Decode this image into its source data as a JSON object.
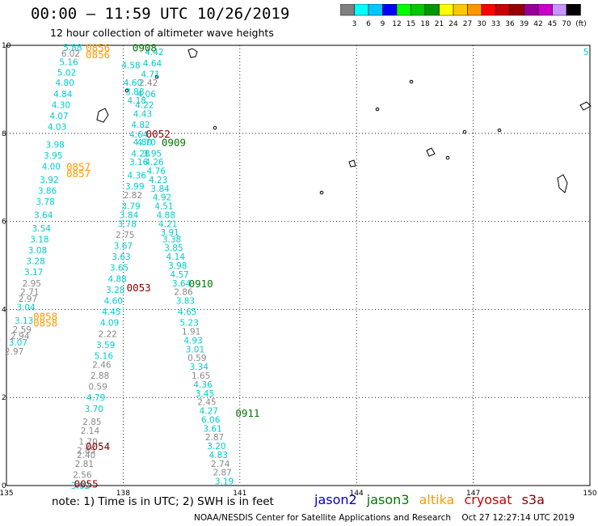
{
  "title": "00:00 – 11:59 UTC 10/26/2019",
  "subtitle": "12 hour collection of altimeter wave heights",
  "colorbar": {
    "colors": [
      "#7f7f7f",
      "#00ffff",
      "#00c8ff",
      "#0000ff",
      "#00ff00",
      "#00c800",
      "#009600",
      "#ffff00",
      "#ffc800",
      "#ff9600",
      "#ff0000",
      "#c80000",
      "#960000",
      "#960096",
      "#c800c8",
      "#c896ff",
      "#000000"
    ],
    "labels": [
      "3",
      "6",
      "9",
      "12",
      "15",
      "18",
      "21",
      "24",
      "27",
      "30",
      "33",
      "36",
      "39",
      "42",
      "45",
      "70"
    ],
    "unit": "(ft)"
  },
  "axes": {
    "x_ticks": [
      "135",
      "138",
      "141",
      "144",
      "147",
      "150"
    ],
    "y_ticks": [
      "0",
      "2",
      "4",
      "6",
      "8",
      "10"
    ]
  },
  "note": "note:  1) Time is in UTC;  2) SWH is in feet",
  "legend": [
    {
      "name": "jason2",
      "color": "#0000cc"
    },
    {
      "name": "jason3",
      "color": "#007700"
    },
    {
      "name": "altika",
      "color": "#ff9900"
    },
    {
      "name": "cryosat",
      "color": "#cc0000"
    },
    {
      "name": "s3a",
      "color": "#880000"
    }
  ],
  "credit": "NOAA/NESDIS Center for Satellite Applications and Research    Oct 27 12:27:14 UTC 2019",
  "track_labels": [
    {
      "t": "0856",
      "lon": 137.35,
      "lat": 9.95,
      "c": "#ff9900"
    },
    {
      "t": "0856",
      "lon": 137.35,
      "lat": 9.8,
      "c": "#ff9900"
    },
    {
      "t": "0908",
      "lon": 138.55,
      "lat": 9.95,
      "c": "#007700"
    },
    {
      "t": "0052",
      "lon": 138.9,
      "lat": 8.0,
      "c": "#880000"
    },
    {
      "t": "0909",
      "lon": 139.3,
      "lat": 7.8,
      "c": "#007700"
    },
    {
      "t": "0857",
      "lon": 136.85,
      "lat": 7.25,
      "c": "#ff9900"
    },
    {
      "t": "0857",
      "lon": 136.85,
      "lat": 7.1,
      "c": "#ff9900"
    },
    {
      "t": "0910",
      "lon": 140.0,
      "lat": 4.6,
      "c": "#007700"
    },
    {
      "t": "0053",
      "lon": 138.4,
      "lat": 4.5,
      "c": "#880000"
    },
    {
      "t": "0858",
      "lon": 136.0,
      "lat": 3.85,
      "c": "#ff9900"
    },
    {
      "t": "0858",
      "lon": 136.0,
      "lat": 3.7,
      "c": "#ff9900"
    },
    {
      "t": "0911",
      "lon": 141.2,
      "lat": 1.65,
      "c": "#007700"
    },
    {
      "t": "0054",
      "lon": 137.35,
      "lat": 0.9,
      "c": "#880000"
    },
    {
      "t": "0055",
      "lon": 137.05,
      "lat": 0.05,
      "c": "#880000"
    }
  ],
  "swh": [
    {
      "v": "5.88",
      "lon": 136.7,
      "lat": 9.95,
      "c": "#00cccc"
    },
    {
      "v": "6.02",
      "lon": 136.65,
      "lat": 9.82,
      "c": "#888888"
    },
    {
      "v": "5.16",
      "lon": 136.6,
      "lat": 9.62,
      "c": "#00cccc"
    },
    {
      "v": "5.02",
      "lon": 136.55,
      "lat": 9.38,
      "c": "#00cccc"
    },
    {
      "v": "4.80",
      "lon": 136.5,
      "lat": 9.15,
      "c": "#00cccc"
    },
    {
      "v": "4.84",
      "lon": 136.45,
      "lat": 8.9,
      "c": "#00cccc"
    },
    {
      "v": "4.30",
      "lon": 136.4,
      "lat": 8.65,
      "c": "#00cccc"
    },
    {
      "v": "4.07",
      "lon": 136.35,
      "lat": 8.4,
      "c": "#00cccc"
    },
    {
      "v": "4.03",
      "lon": 136.3,
      "lat": 8.15,
      "c": "#00cccc"
    },
    {
      "v": "3.98",
      "lon": 136.25,
      "lat": 7.75,
      "c": "#00cccc"
    },
    {
      "v": "3.95",
      "lon": 136.2,
      "lat": 7.5,
      "c": "#00cccc"
    },
    {
      "v": "4.00",
      "lon": 136.15,
      "lat": 7.25,
      "c": "#00cccc"
    },
    {
      "v": "3.92",
      "lon": 136.1,
      "lat": 6.95,
      "c": "#00cccc"
    },
    {
      "v": "3.86",
      "lon": 136.05,
      "lat": 6.7,
      "c": "#00cccc"
    },
    {
      "v": "3.78",
      "lon": 136.0,
      "lat": 6.45,
      "c": "#00cccc"
    },
    {
      "v": "3.64",
      "lon": 135.95,
      "lat": 6.15,
      "c": "#00cccc"
    },
    {
      "v": "3.54",
      "lon": 135.9,
      "lat": 5.85,
      "c": "#00cccc"
    },
    {
      "v": "3.18",
      "lon": 135.85,
      "lat": 5.6,
      "c": "#00cccc"
    },
    {
      "v": "3.08",
      "lon": 135.8,
      "lat": 5.35,
      "c": "#00cccc"
    },
    {
      "v": "3.28",
      "lon": 135.75,
      "lat": 5.1,
      "c": "#00cccc"
    },
    {
      "v": "3.17",
      "lon": 135.7,
      "lat": 4.85,
      "c": "#00cccc"
    },
    {
      "v": "2.95",
      "lon": 135.65,
      "lat": 4.6,
      "c": "#888888"
    },
    {
      "v": "2.71",
      "lon": 135.6,
      "lat": 4.4,
      "c": "#888888"
    },
    {
      "v": "2.97",
      "lon": 135.55,
      "lat": 4.25,
      "c": "#888888"
    },
    {
      "v": "3.04",
      "lon": 135.5,
      "lat": 4.05,
      "c": "#00cccc"
    },
    {
      "v": "3.13",
      "lon": 135.45,
      "lat": 3.75,
      "c": "#00cccc"
    },
    {
      "v": "2.59",
      "lon": 135.4,
      "lat": 3.55,
      "c": "#888888"
    },
    {
      "v": "2.94",
      "lon": 135.35,
      "lat": 3.4,
      "c": "#888888"
    },
    {
      "v": "3.07",
      "lon": 135.3,
      "lat": 3.25,
      "c": "#00cccc"
    },
    {
      "v": "2.97",
      "lon": 135.2,
      "lat": 3.05,
      "c": "#888888"
    },
    {
      "v": "4.42",
      "lon": 138.8,
      "lat": 9.85,
      "c": "#00cccc"
    },
    {
      "v": "4.64",
      "lon": 138.75,
      "lat": 9.6,
      "c": "#00cccc"
    },
    {
      "v": "4.58",
      "lon": 138.2,
      "lat": 9.55,
      "c": "#00cccc"
    },
    {
      "v": "4.71",
      "lon": 138.7,
      "lat": 9.35,
      "c": "#00cccc"
    },
    {
      "v": "4.60",
      "lon": 138.25,
      "lat": 9.15,
      "c": "#00cccc"
    },
    {
      "v": "2.42",
      "lon": 138.65,
      "lat": 9.15,
      "c": "#888888"
    },
    {
      "v": "3.88",
      "lon": 138.3,
      "lat": 8.95,
      "c": "#00cccc"
    },
    {
      "v": "4.06",
      "lon": 138.6,
      "lat": 8.9,
      "c": "#00cccc"
    },
    {
      "v": "4.18",
      "lon": 138.35,
      "lat": 8.75,
      "c": "#00cccc"
    },
    {
      "v": "4.22",
      "lon": 138.55,
      "lat": 8.65,
      "c": "#00cccc"
    },
    {
      "v": "4.43",
      "lon": 138.5,
      "lat": 8.45,
      "c": "#00cccc"
    },
    {
      "v": "4.82",
      "lon": 138.45,
      "lat": 8.2,
      "c": "#00cccc"
    },
    {
      "v": "4.64",
      "lon": 138.4,
      "lat": 7.98,
      "c": "#00cccc"
    },
    {
      "v": "4.80",
      "lon": 138.5,
      "lat": 7.8,
      "c": "#00cccc"
    },
    {
      "v": "4.70",
      "lon": 138.6,
      "lat": 7.8,
      "c": "#00cccc"
    },
    {
      "v": "4.28",
      "lon": 138.45,
      "lat": 7.55,
      "c": "#00cccc"
    },
    {
      "v": "3.95",
      "lon": 138.75,
      "lat": 7.55,
      "c": "#00cccc"
    },
    {
      "v": "3.16",
      "lon": 138.4,
      "lat": 7.35,
      "c": "#00cccc"
    },
    {
      "v": "4.26",
      "lon": 138.8,
      "lat": 7.35,
      "c": "#00cccc"
    },
    {
      "v": "4.76",
      "lon": 138.85,
      "lat": 7.15,
      "c": "#00cccc"
    },
    {
      "v": "4.36",
      "lon": 138.35,
      "lat": 7.05,
      "c": "#00cccc"
    },
    {
      "v": "4.23",
      "lon": 138.9,
      "lat": 6.95,
      "c": "#00cccc"
    },
    {
      "v": "3.99",
      "lon": 138.3,
      "lat": 6.8,
      "c": "#00cccc"
    },
    {
      "v": "3.84",
      "lon": 138.95,
      "lat": 6.75,
      "c": "#00cccc"
    },
    {
      "v": "2.82",
      "lon": 138.25,
      "lat": 6.6,
      "c": "#888888"
    },
    {
      "v": "4.92",
      "lon": 139.0,
      "lat": 6.55,
      "c": "#00cccc"
    },
    {
      "v": "3.79",
      "lon": 138.2,
      "lat": 6.35,
      "c": "#00cccc"
    },
    {
      "v": "4.51",
      "lon": 139.05,
      "lat": 6.35,
      "c": "#00cccc"
    },
    {
      "v": "3.84",
      "lon": 138.15,
      "lat": 6.15,
      "c": "#00cccc"
    },
    {
      "v": "4.88",
      "lon": 139.1,
      "lat": 6.15,
      "c": "#00cccc"
    },
    {
      "v": "4.21",
      "lon": 139.15,
      "lat": 5.95,
      "c": "#00cccc"
    },
    {
      "v": "3.78",
      "lon": 138.1,
      "lat": 5.95,
      "c": "#00cccc"
    },
    {
      "v": "3.91",
      "lon": 139.2,
      "lat": 5.75,
      "c": "#00cccc"
    },
    {
      "v": "2.75",
      "lon": 138.05,
      "lat": 5.7,
      "c": "#888888"
    },
    {
      "v": "3.38",
      "lon": 139.25,
      "lat": 5.6,
      "c": "#00cccc"
    },
    {
      "v": "3.67",
      "lon": 138.0,
      "lat": 5.45,
      "c": "#00cccc"
    },
    {
      "v": "3.85",
      "lon": 139.3,
      "lat": 5.4,
      "c": "#00cccc"
    },
    {
      "v": "3.63",
      "lon": 137.95,
      "lat": 5.2,
      "c": "#00cccc"
    },
    {
      "v": "4.14",
      "lon": 139.35,
      "lat": 5.2,
      "c": "#00cccc"
    },
    {
      "v": "3.98",
      "lon": 139.4,
      "lat": 5.0,
      "c": "#00cccc"
    },
    {
      "v": "3.65",
      "lon": 137.9,
      "lat": 4.95,
      "c": "#00cccc"
    },
    {
      "v": "4.57",
      "lon": 139.45,
      "lat": 4.8,
      "c": "#00cccc"
    },
    {
      "v": "4.88",
      "lon": 137.85,
      "lat": 4.7,
      "c": "#00cccc"
    },
    {
      "v": "3.64",
      "lon": 139.5,
      "lat": 4.6,
      "c": "#00cccc"
    },
    {
      "v": "3.28",
      "lon": 137.8,
      "lat": 4.45,
      "c": "#00cccc"
    },
    {
      "v": "2.86",
      "lon": 139.55,
      "lat": 4.4,
      "c": "#888888"
    },
    {
      "v": "4.60",
      "lon": 137.75,
      "lat": 4.2,
      "c": "#00cccc"
    },
    {
      "v": "3.83",
      "lon": 139.6,
      "lat": 4.2,
      "c": "#00cccc"
    },
    {
      "v": "4.45",
      "lon": 137.7,
      "lat": 3.95,
      "c": "#00cccc"
    },
    {
      "v": "4.65",
      "lon": 139.65,
      "lat": 3.95,
      "c": "#00cccc"
    },
    {
      "v": "5.23",
      "lon": 139.7,
      "lat": 3.7,
      "c": "#00cccc"
    },
    {
      "v": "4.09",
      "lon": 137.65,
      "lat": 3.7,
      "c": "#00cccc"
    },
    {
      "v": "1.91",
      "lon": 139.75,
      "lat": 3.5,
      "c": "#888888"
    },
    {
      "v": "2.22",
      "lon": 137.6,
      "lat": 3.45,
      "c": "#888888"
    },
    {
      "v": "4.93",
      "lon": 139.8,
      "lat": 3.3,
      "c": "#00cccc"
    },
    {
      "v": "3.59",
      "lon": 137.55,
      "lat": 3.2,
      "c": "#00cccc"
    },
    {
      "v": "3.01",
      "lon": 139.85,
      "lat": 3.1,
      "c": "#00cccc"
    },
    {
      "v": "5.16",
      "lon": 137.5,
      "lat": 2.95,
      "c": "#00cccc"
    },
    {
      "v": "0.59",
      "lon": 139.9,
      "lat": 2.9,
      "c": "#888888"
    },
    {
      "v": "2.46",
      "lon": 137.45,
      "lat": 2.75,
      "c": "#888888"
    },
    {
      "v": "3.34",
      "lon": 139.95,
      "lat": 2.7,
      "c": "#00cccc"
    },
    {
      "v": "2.88",
      "lon": 137.4,
      "lat": 2.5,
      "c": "#888888"
    },
    {
      "v": "1.65",
      "lon": 140.0,
      "lat": 2.5,
      "c": "#888888"
    },
    {
      "v": "0.59",
      "lon": 137.35,
      "lat": 2.25,
      "c": "#888888"
    },
    {
      "v": "4.36",
      "lon": 140.05,
      "lat": 2.3,
      "c": "#00cccc"
    },
    {
      "v": "4.79",
      "lon": 137.3,
      "lat": 2.0,
      "c": "#00cccc"
    },
    {
      "v": "3.45",
      "lon": 140.1,
      "lat": 2.1,
      "c": "#00cccc"
    },
    {
      "v": "2.45",
      "lon": 140.15,
      "lat": 1.9,
      "c": "#888888"
    },
    {
      "v": "3.70",
      "lon": 137.25,
      "lat": 1.75,
      "c": "#00cccc"
    },
    {
      "v": "4.27",
      "lon": 140.2,
      "lat": 1.7,
      "c": "#00cccc"
    },
    {
      "v": "2.85",
      "lon": 137.2,
      "lat": 1.45,
      "c": "#888888"
    },
    {
      "v": "6.06",
      "lon": 140.25,
      "lat": 1.5,
      "c": "#00cccc"
    },
    {
      "v": "2.14",
      "lon": 137.15,
      "lat": 1.25,
      "c": "#888888"
    },
    {
      "v": "3.61",
      "lon": 140.3,
      "lat": 1.3,
      "c": "#00cccc"
    },
    {
      "v": "1.70",
      "lon": 137.1,
      "lat": 1.0,
      "c": "#888888"
    },
    {
      "v": "2.87",
      "lon": 140.35,
      "lat": 1.1,
      "c": "#888888"
    },
    {
      "v": "2.85",
      "lon": 137.05,
      "lat": 0.8,
      "c": "#888888"
    },
    {
      "v": "2.40",
      "lon": 137.05,
      "lat": 0.7,
      "c": "#888888"
    },
    {
      "v": "3.20",
      "lon": 140.4,
      "lat": 0.9,
      "c": "#00cccc"
    },
    {
      "v": "2.81",
      "lon": 137.0,
      "lat": 0.5,
      "c": "#888888"
    },
    {
      "v": "4.83",
      "lon": 140.45,
      "lat": 0.7,
      "c": "#00cccc"
    },
    {
      "v": "2.56",
      "lon": 136.95,
      "lat": 0.25,
      "c": "#888888"
    },
    {
      "v": "2.74",
      "lon": 140.5,
      "lat": 0.5,
      "c": "#888888"
    },
    {
      "v": "3.02",
      "lon": 136.9,
      "lat": 0.0,
      "c": "#00cccc"
    },
    {
      "v": "2.87",
      "lon": 140.55,
      "lat": 0.3,
      "c": "#888888"
    },
    {
      "v": "3.19",
      "lon": 140.6,
      "lat": 0.1,
      "c": "#00cccc"
    },
    {
      "v": "5",
      "lon": 149.9,
      "lat": 9.85,
      "c": "#00cccc"
    }
  ]
}
